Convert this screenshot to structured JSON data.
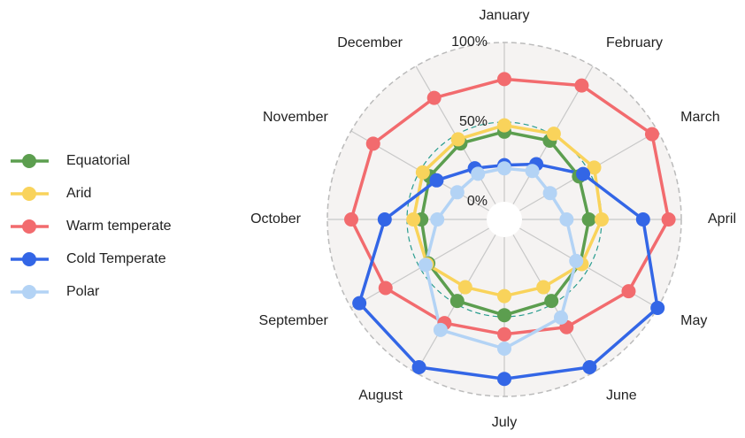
{
  "chart_data": {
    "type": "radar",
    "categories": [
      "January",
      "February",
      "March",
      "April",
      "May",
      "June",
      "July",
      "August",
      "September",
      "October",
      "November",
      "December"
    ],
    "series": [
      {
        "name": "Equatorial",
        "color": "#5c9e4f",
        "values": [
          44,
          46,
          43,
          42,
          44,
          48,
          49,
          48,
          44,
          41,
          43,
          44
        ]
      },
      {
        "name": "Arid",
        "color": "#f9d35b",
        "values": [
          48,
          51,
          54,
          50,
          45,
          38,
          37,
          38,
          45,
          46,
          48,
          47
        ]
      },
      {
        "name": "Warm temperate",
        "color": "#f26b6e",
        "values": [
          77,
          86,
          96,
          92,
          79,
          67,
          61,
          64,
          75,
          85,
          84,
          77
        ]
      },
      {
        "name": "Cold Temperate",
        "color": "#3366e6",
        "values": [
          23,
          29,
          46,
          76,
          100,
          96,
          89,
          96,
          94,
          64,
          38,
          26
        ]
      },
      {
        "name": "Polar",
        "color": "#b3d3f5",
        "values": [
          21,
          24,
          22,
          28,
          41,
          60,
          70,
          69,
          46,
          31,
          23,
          22
        ]
      }
    ],
    "rlim": [
      0,
      100
    ],
    "rticks": [
      {
        "value": 0,
        "label": "0%"
      },
      {
        "value": 50,
        "label": "50%"
      },
      {
        "value": 100,
        "label": "100%"
      }
    ],
    "legend": "left"
  }
}
